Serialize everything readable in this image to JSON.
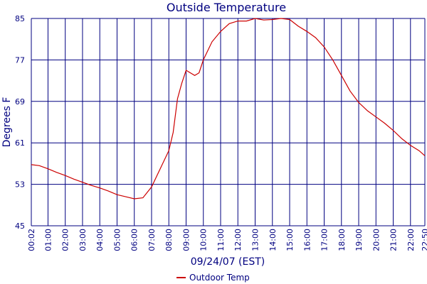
{
  "chart_data": {
    "type": "line",
    "title": "Outside Temperature",
    "xlabel": "09/24/07 (EST)",
    "ylabel": "Degrees F",
    "ylim": [
      45,
      85
    ],
    "yticks": [
      45,
      53,
      61,
      69,
      77,
      85
    ],
    "xticks": [
      "00:02",
      "01:00",
      "02:00",
      "03:00",
      "04:00",
      "05:00",
      "06:00",
      "07:00",
      "08:00",
      "09:00",
      "10:00",
      "11:00",
      "12:00",
      "13:00",
      "14:00",
      "15:00",
      "16:00",
      "17:00",
      "18:00",
      "19:00",
      "20:00",
      "21:00",
      "22:00",
      "22:50"
    ],
    "grid": true,
    "legend_position": "bottom-center",
    "colors": {
      "series": "#cc0000",
      "axes": "#000080",
      "grid": "#000080"
    },
    "series": [
      {
        "name": "Outdoor Temp",
        "x": [
          "00:02",
          "00:30",
          "01:00",
          "01:30",
          "02:00",
          "02:30",
          "03:00",
          "03:30",
          "04:00",
          "04:30",
          "05:00",
          "05:30",
          "06:00",
          "06:30",
          "07:00",
          "07:30",
          "08:00",
          "08:15",
          "08:30",
          "08:45",
          "09:00",
          "09:30",
          "09:45",
          "10:00",
          "10:30",
          "11:00",
          "11:30",
          "12:00",
          "12:30",
          "13:00",
          "13:30",
          "14:00",
          "14:30",
          "15:00",
          "15:30",
          "16:00",
          "16:30",
          "17:00",
          "17:30",
          "18:00",
          "18:30",
          "19:00",
          "19:30",
          "20:00",
          "20:30",
          "21:00",
          "21:30",
          "22:00",
          "22:30",
          "22:50"
        ],
        "y": [
          56.8,
          56.6,
          56.0,
          55.3,
          54.7,
          54.0,
          53.4,
          52.8,
          52.3,
          51.7,
          51.0,
          50.6,
          50.2,
          50.4,
          52.5,
          56.0,
          59.5,
          63.0,
          69.5,
          72.5,
          75.0,
          74.0,
          74.5,
          77.0,
          80.5,
          82.5,
          84.0,
          84.5,
          84.5,
          85.0,
          84.7,
          84.8,
          85.0,
          84.8,
          83.5,
          82.5,
          81.3,
          79.5,
          77.0,
          74.0,
          71.0,
          68.8,
          67.2,
          66.0,
          64.8,
          63.4,
          61.8,
          60.5,
          59.5,
          58.5
        ]
      }
    ]
  }
}
